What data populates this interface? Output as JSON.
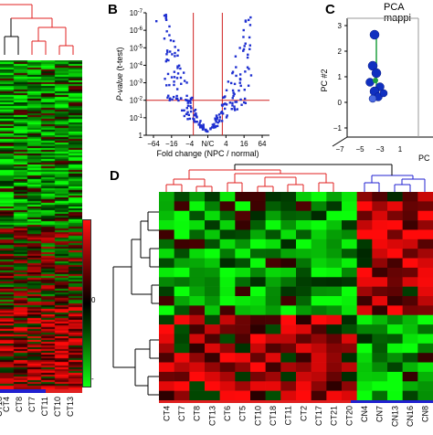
{
  "panels": {
    "b": {
      "letter": "B"
    },
    "c": {
      "letter": "C",
      "title": "PCA mappi"
    },
    "d": {
      "letter": "D"
    }
  },
  "colors": {
    "red_band": "#e02020",
    "blue_band": "#2020d0",
    "volcano_points": "#1e2fd0",
    "threshold_lines": "#d02020",
    "pca_main": "#1030c0",
    "pca_light": "#4a6ae0",
    "pca_green": "#20a040",
    "heat_red": "#d01818",
    "heat_green": "#18c018",
    "heat_black": "#000000"
  },
  "colorbar": {
    "label_mid": "0",
    "label_bottom": "-"
  },
  "panel_a_labels": [
    "CT4",
    "CT8",
    "CT7",
    "CT11",
    "CT10",
    "CT13"
  ],
  "panel_a_bottom_partial": [
    "CT18"
  ],
  "chart_data": [
    {
      "type": "scatter",
      "panel": "B",
      "xlabel": "Fold change (NPC / normal)",
      "ylabel": "P-value (t-test)",
      "x_ticks": [
        "−64",
        "−16",
        "−4",
        "N/C",
        "4",
        "16",
        "64"
      ],
      "y_ticks": [
        "10^-7",
        "10^-6",
        "10^-5",
        "10^-4",
        "10^-3",
        "10^-2",
        "10^-1",
        "1"
      ],
      "x_scale": "log2-fold",
      "y_scale": "log",
      "thresholds": {
        "x": [
          -3,
          3
        ],
        "y": 0.01
      },
      "points_summary": "volcano cloud of ~200 genes"
    },
    {
      "type": "scatter",
      "panel": "C",
      "title": "PCA mappi",
      "ylabel": "PC #2",
      "xlabel": "PC",
      "y_ticks": [
        "−1",
        "0",
        "1",
        "2",
        "3"
      ],
      "x_ticks": [
        "−7",
        "−5",
        "−3",
        "1"
      ]
    },
    {
      "type": "heatmap",
      "panel": "D",
      "columns": [
        "CT4",
        "CT7",
        "CT8",
        "CT13",
        "CT6",
        "CT5",
        "CT10",
        "CT18",
        "CT11",
        "CT2",
        "CT17",
        "CT21",
        "CT20",
        "CN4",
        "CN7",
        "CN13",
        "CN16",
        "CN8"
      ],
      "groups": [
        "tumor",
        "tumor",
        "tumor",
        "tumor",
        "tumor",
        "tumor",
        "tumor",
        "tumor",
        "tumor",
        "tumor",
        "tumor",
        "tumor",
        "tumor",
        "normal",
        "normal",
        "normal",
        "normal",
        "normal"
      ],
      "rows": 22
    }
  ]
}
